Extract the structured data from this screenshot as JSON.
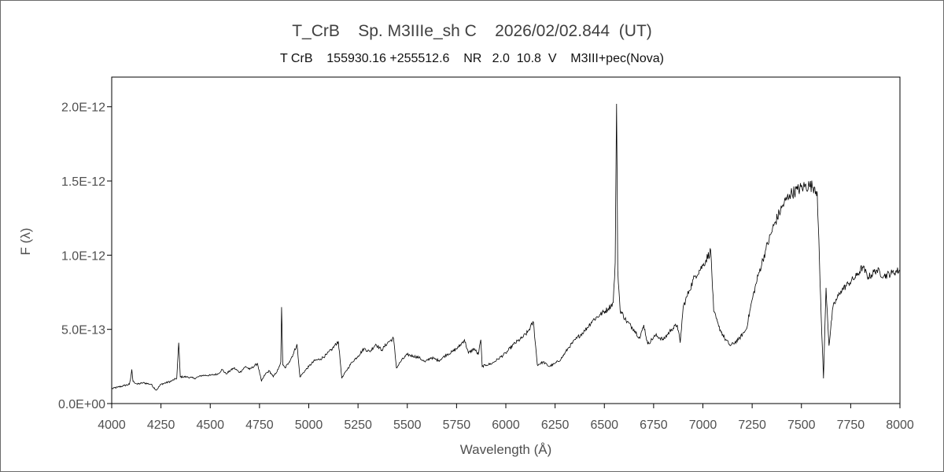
{
  "chart_data": {
    "type": "line",
    "title": "T_CrB    Sp. M3IIIe_sh C    2026/02/02.844  (UT)",
    "subtitle": "T CrB    155930.16 +255512.6    NR   2.0  10.8  V    M3III+pec(Nova)",
    "xlabel": "Wavelength (Å)",
    "ylabel": "F (λ)",
    "xlim": [
      4000,
      8000
    ],
    "ylim": [
      0,
      2.2e-12
    ],
    "xticks": [
      4000,
      4250,
      4500,
      4750,
      5000,
      5250,
      5500,
      5750,
      6000,
      6250,
      6500,
      6750,
      7000,
      7250,
      7500,
      7750,
      8000
    ],
    "xtick_labels": [
      "4000",
      "4250",
      "4500",
      "4750",
      "5000",
      "5250",
      "5500",
      "5750",
      "6000",
      "6250",
      "6500",
      "6750",
      "7000",
      "7250",
      "7500",
      "7750",
      "8000"
    ],
    "yticks": [
      0,
      5e-13,
      1e-12,
      1.5e-12,
      2e-12
    ],
    "ytick_labels": [
      "0.0E+00",
      "5.0E-13",
      "1.0E-12",
      "1.5E-12",
      "2.0E-12"
    ],
    "grid": false,
    "line_color": "#000000",
    "series": [
      {
        "points": [
          [
            4000,
            1e-13
          ],
          [
            4030,
            1.1e-13
          ],
          [
            4060,
            1.2e-13
          ],
          [
            4090,
            1.3e-13
          ],
          [
            4095,
            1.6e-13
          ],
          [
            4102,
            2.3e-13
          ],
          [
            4108,
            1.5e-13
          ],
          [
            4130,
            1.3e-13
          ],
          [
            4160,
            1.4e-13
          ],
          [
            4200,
            1.3e-13
          ],
          [
            4226,
            9e-14
          ],
          [
            4250,
            1.3e-13
          ],
          [
            4300,
            1.5e-13
          ],
          [
            4330,
            1.7e-13
          ],
          [
            4340,
            4.1e-13
          ],
          [
            4348,
            1.8e-13
          ],
          [
            4380,
            1.8e-13
          ],
          [
            4420,
            1.7e-13
          ],
          [
            4460,
            1.9e-13
          ],
          [
            4500,
            1.9e-13
          ],
          [
            4540,
            2e-13
          ],
          [
            4560,
            2.3e-13
          ],
          [
            4580,
            2e-13
          ],
          [
            4620,
            2.4e-13
          ],
          [
            4650,
            2.1e-13
          ],
          [
            4680,
            2.5e-13
          ],
          [
            4700,
            2.3e-13
          ],
          [
            4740,
            2.7e-13
          ],
          [
            4760,
            1.5e-13
          ],
          [
            4780,
            2e-13
          ],
          [
            4800,
            2.2e-13
          ],
          [
            4820,
            1.8e-13
          ],
          [
            4845,
            2.3e-13
          ],
          [
            4858,
            2.8e-13
          ],
          [
            4862,
            6.5e-13
          ],
          [
            4868,
            2.6e-13
          ],
          [
            4880,
            2.4e-13
          ],
          [
            4900,
            2.8e-13
          ],
          [
            4920,
            3.3e-13
          ],
          [
            4940,
            4e-13
          ],
          [
            4955,
            1.8e-13
          ],
          [
            4980,
            2.2e-13
          ],
          [
            5000,
            2.5e-13
          ],
          [
            5030,
            2.9e-13
          ],
          [
            5060,
            3e-13
          ],
          [
            5090,
            3.3e-13
          ],
          [
            5120,
            3.7e-13
          ],
          [
            5150,
            4.2e-13
          ],
          [
            5168,
            1.7e-13
          ],
          [
            5190,
            2.2e-13
          ],
          [
            5220,
            2.8e-13
          ],
          [
            5250,
            3.2e-13
          ],
          [
            5280,
            3.7e-13
          ],
          [
            5310,
            3.5e-13
          ],
          [
            5340,
            4e-13
          ],
          [
            5370,
            3.6e-13
          ],
          [
            5400,
            4.1e-13
          ],
          [
            5430,
            4.4e-13
          ],
          [
            5445,
            2.4e-13
          ],
          [
            5470,
            2.9e-13
          ],
          [
            5500,
            3.3e-13
          ],
          [
            5530,
            3.2e-13
          ],
          [
            5560,
            3.1e-13
          ],
          [
            5590,
            2.8e-13
          ],
          [
            5620,
            3.1e-13
          ],
          [
            5660,
            2.9e-13
          ],
          [
            5700,
            3.3e-13
          ],
          [
            5730,
            3.5e-13
          ],
          [
            5760,
            3.8e-13
          ],
          [
            5790,
            4.3e-13
          ],
          [
            5810,
            3.4e-13
          ],
          [
            5840,
            3.7e-13
          ],
          [
            5860,
            3.3e-13
          ],
          [
            5873,
            4.3e-13
          ],
          [
            5880,
            2.5e-13
          ],
          [
            5900,
            2.6e-13
          ],
          [
            5930,
            2.7e-13
          ],
          [
            5960,
            3e-13
          ],
          [
            6000,
            3.4e-13
          ],
          [
            6040,
            4e-13
          ],
          [
            6080,
            4.4e-13
          ],
          [
            6110,
            4.8e-13
          ],
          [
            6140,
            5.5e-13
          ],
          [
            6160,
            2.6e-13
          ],
          [
            6190,
            2.8e-13
          ],
          [
            6220,
            2.5e-13
          ],
          [
            6250,
            2.7e-13
          ],
          [
            6280,
            3e-13
          ],
          [
            6320,
            3.8e-13
          ],
          [
            6360,
            4.4e-13
          ],
          [
            6400,
            4.9e-13
          ],
          [
            6440,
            5.6e-13
          ],
          [
            6480,
            6e-13
          ],
          [
            6520,
            6.4e-13
          ],
          [
            6545,
            6.8e-13
          ],
          [
            6555,
            9.5e-13
          ],
          [
            6562,
            2.02e-12
          ],
          [
            6568,
            9e-13
          ],
          [
            6580,
            6.3e-13
          ],
          [
            6610,
            5.6e-13
          ],
          [
            6650,
            5e-13
          ],
          [
            6680,
            4.4e-13
          ],
          [
            6700,
            5.3e-13
          ],
          [
            6720,
            4e-13
          ],
          [
            6760,
            4.6e-13
          ],
          [
            6800,
            4.3e-13
          ],
          [
            6840,
            5e-13
          ],
          [
            6870,
            5.3e-13
          ],
          [
            6885,
            4.1e-13
          ],
          [
            6900,
            6.5e-13
          ],
          [
            6930,
            7.6e-13
          ],
          [
            6960,
            8.6e-13
          ],
          [
            7000,
            9.3e-13
          ],
          [
            7040,
            1.03e-12
          ],
          [
            7055,
            6.2e-13
          ],
          [
            7080,
            5.2e-13
          ],
          [
            7110,
            4.4e-13
          ],
          [
            7140,
            3.9e-13
          ],
          [
            7180,
            4.3e-13
          ],
          [
            7220,
            5e-13
          ],
          [
            7250,
            7e-13
          ],
          [
            7280,
            8.6e-13
          ],
          [
            7320,
            1.04e-12
          ],
          [
            7360,
            1.2e-12
          ],
          [
            7400,
            1.32e-12
          ],
          [
            7440,
            1.41e-12
          ],
          [
            7480,
            1.44e-12
          ],
          [
            7510,
            1.46e-12
          ],
          [
            7540,
            1.47e-12
          ],
          [
            7565,
            1.46e-12
          ],
          [
            7580,
            1.43e-12
          ],
          [
            7600,
            6e-13
          ],
          [
            7612,
            1.7e-13
          ],
          [
            7625,
            7.8e-13
          ],
          [
            7640,
            3.9e-13
          ],
          [
            7660,
            6.5e-13
          ],
          [
            7700,
            7.6e-13
          ],
          [
            7740,
            8.1e-13
          ],
          [
            7780,
            8.6e-13
          ],
          [
            7810,
            9.2e-13
          ],
          [
            7840,
            8.5e-13
          ],
          [
            7880,
            9e-13
          ],
          [
            7920,
            8.6e-13
          ],
          [
            7960,
            8.8e-13
          ],
          [
            8000,
            9e-13
          ]
        ]
      }
    ]
  }
}
